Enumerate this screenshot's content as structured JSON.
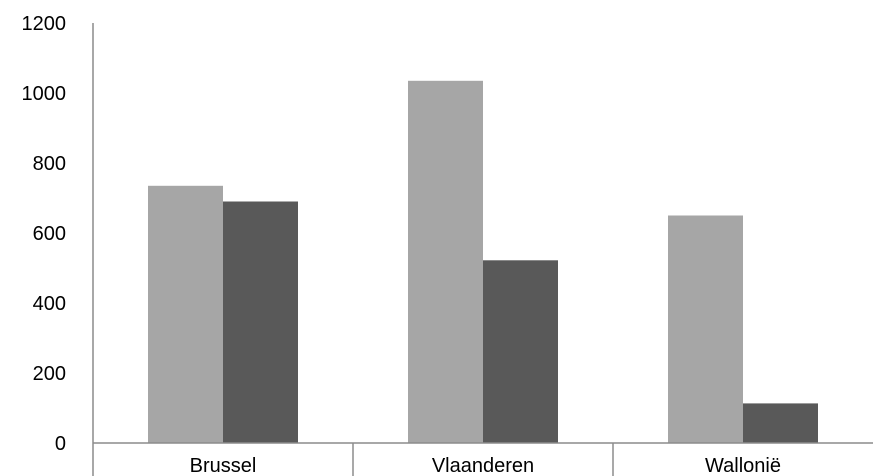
{
  "chart_data": {
    "type": "bar",
    "categories": [
      "Brussel",
      "Vlaanderen",
      "Wallonië"
    ],
    "series": [
      {
        "color": "#a6a6a6",
        "values": [
          735,
          1035,
          650
        ]
      },
      {
        "color": "#595959",
        "values": [
          690,
          522,
          113
        ]
      }
    ],
    "ylim": [
      0,
      1200
    ],
    "yticks": [
      0,
      200,
      400,
      600,
      800,
      1000,
      1200
    ],
    "grid": false,
    "legend": "none",
    "title": "",
    "xlabel": "",
    "ylabel": ""
  }
}
